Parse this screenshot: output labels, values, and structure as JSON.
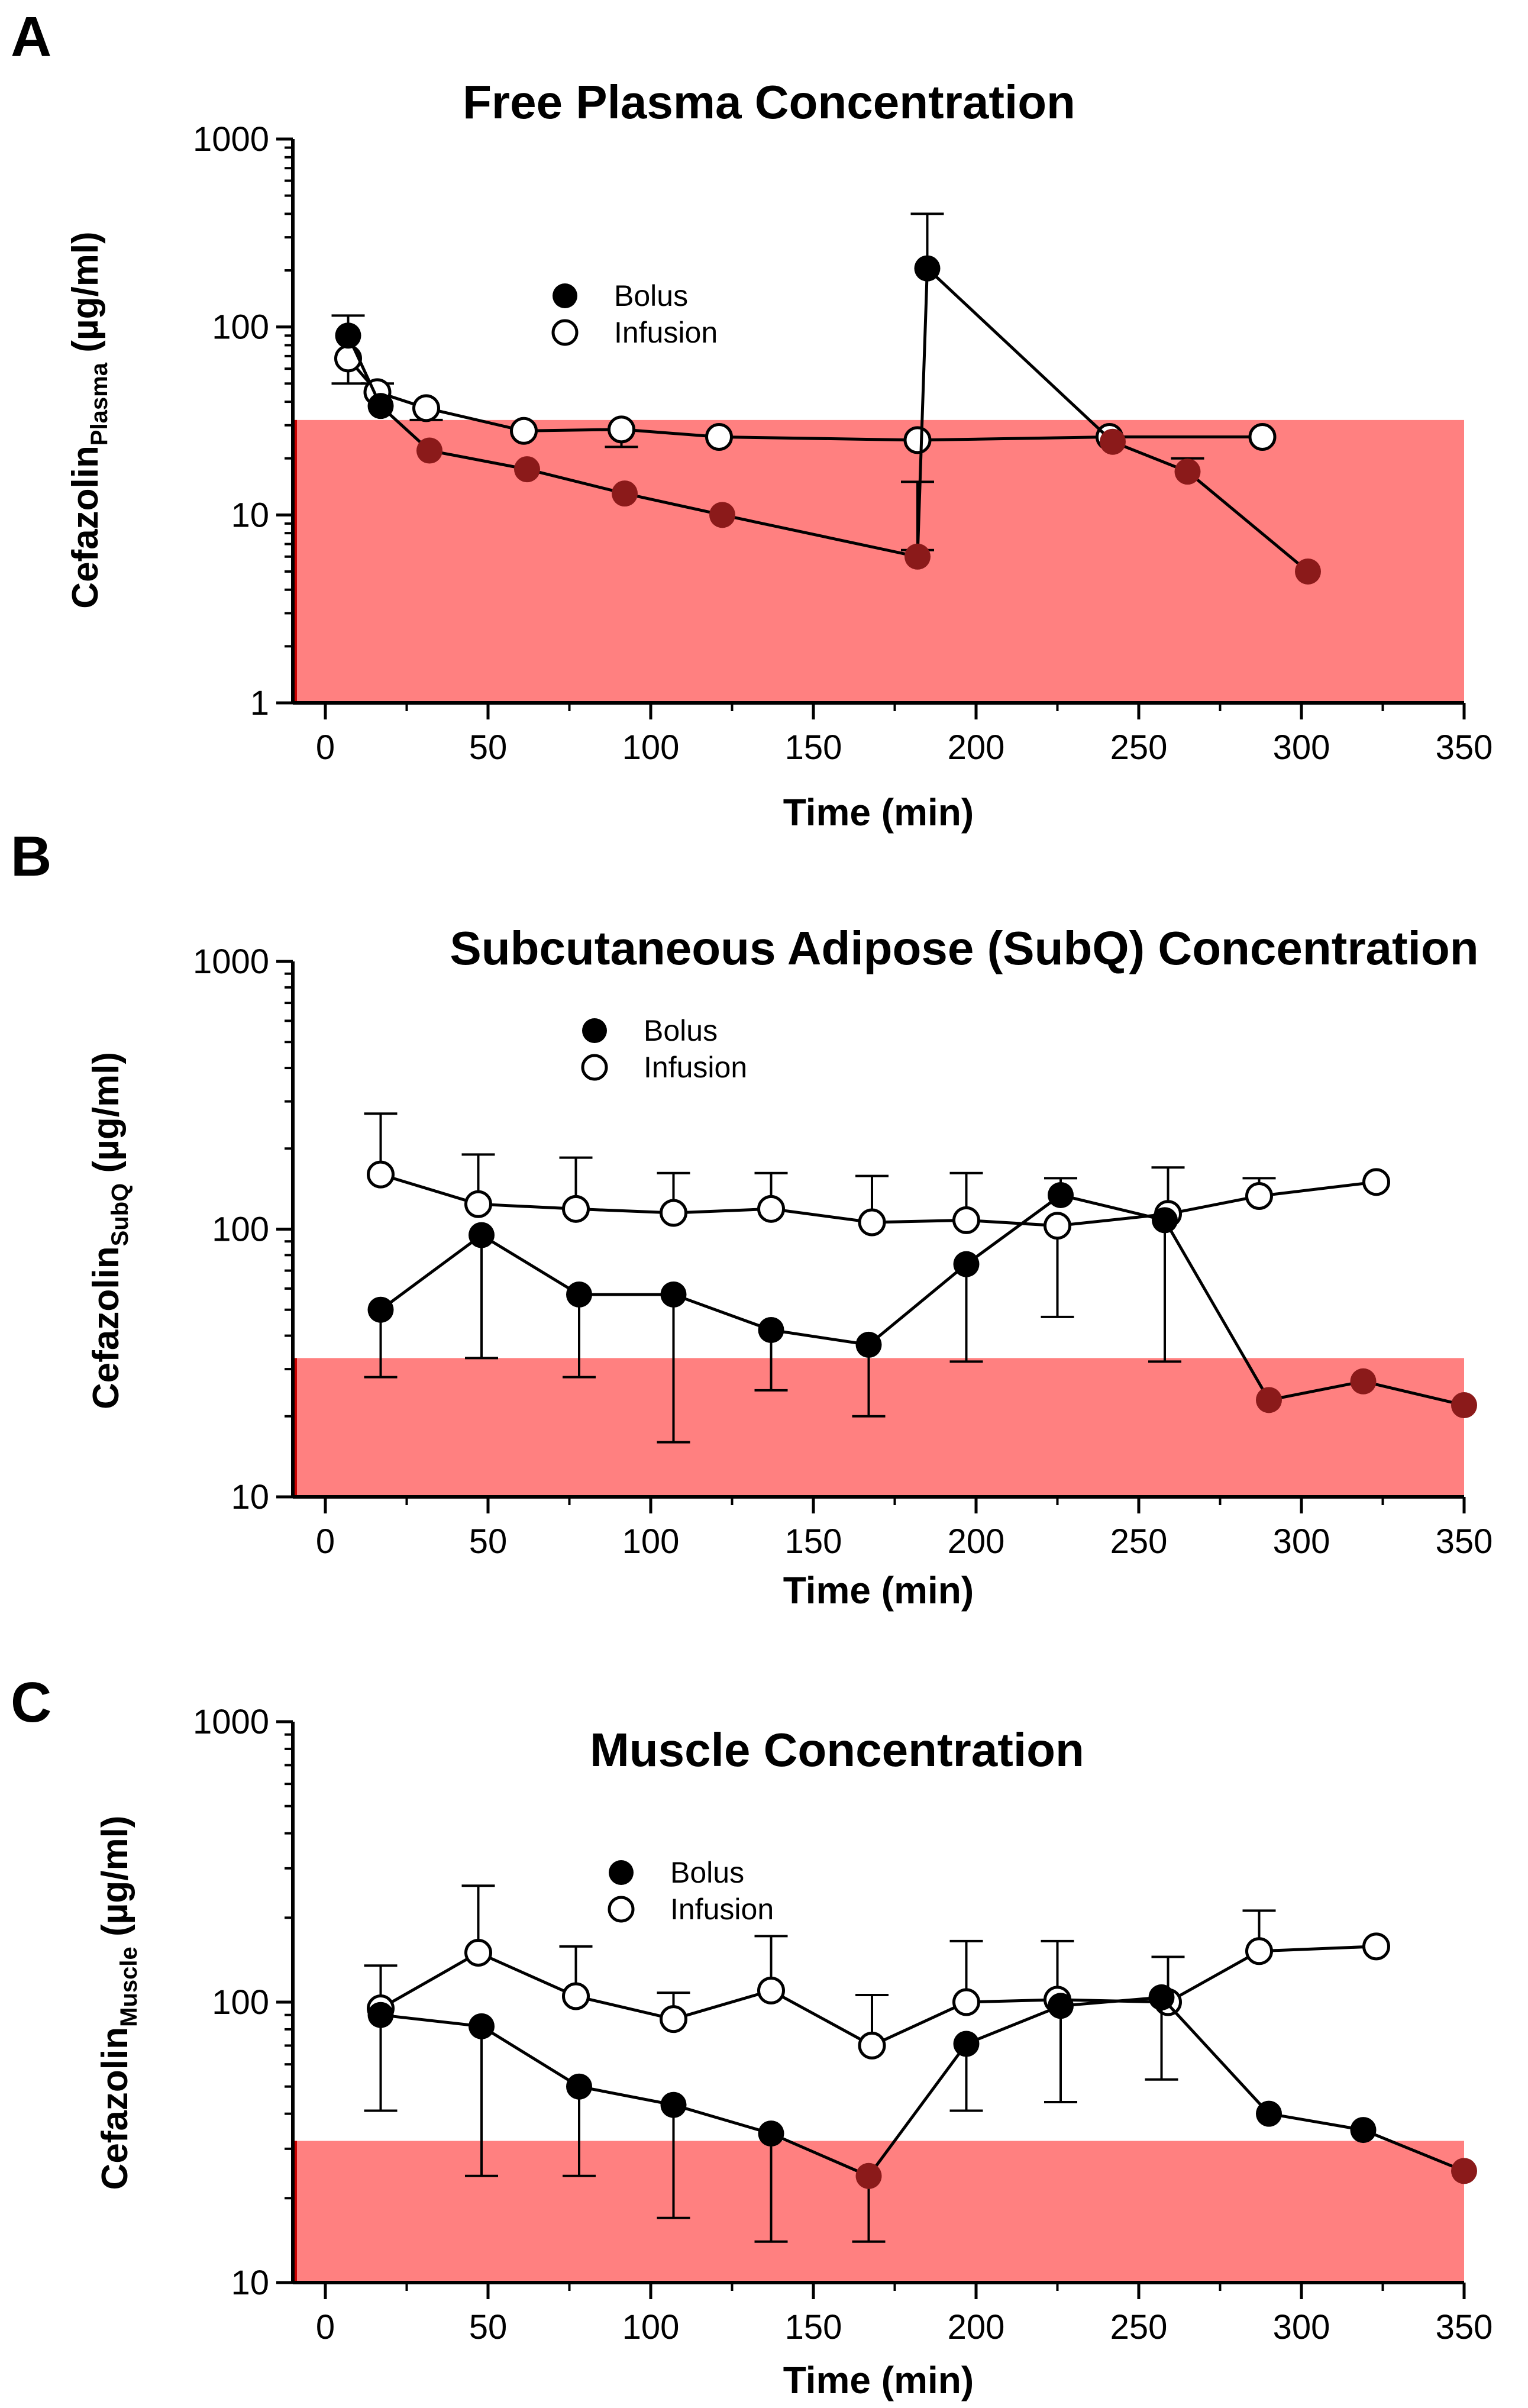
{
  "colors": {
    "threshold_band": "#ff8080",
    "threshold_border": "#cc0000",
    "bolus_marker": "#000000",
    "bolus_marker_in_band": "#8b1a1a",
    "axis": "#000000"
  },
  "chart_data": [
    {
      "panel": "A",
      "type": "line",
      "title": "Free Plasma Concentration",
      "xlabel": "Time (min)",
      "ylabel_main": "Cefazolin",
      "ylabel_sub": "Plasma",
      "ylabel_unit": " (µg/ml)",
      "yscale": "log",
      "xlim": [
        -10,
        350
      ],
      "ylim": [
        1,
        1000
      ],
      "x_ticks": [
        0,
        50,
        100,
        150,
        200,
        250,
        300,
        350
      ],
      "y_ticks": [
        1,
        10,
        100,
        1000
      ],
      "threshold_band": {
        "y_from": 1,
        "y_to": 32
      },
      "legend": {
        "position": "upper-center",
        "bolus": "Bolus",
        "infusion": "Infusion"
      },
      "series": [
        {
          "name": "Bolus",
          "marker": "filled",
          "x": [
            7,
            17,
            32,
            62,
            92,
            122,
            182,
            185,
            242,
            265,
            302
          ],
          "y": [
            90,
            38,
            22,
            17.5,
            13,
            10,
            6,
            205,
            24.5,
            17,
            5
          ],
          "err_up": [
            115,
            null,
            null,
            null,
            null,
            null,
            6.5,
            400,
            null,
            20,
            null
          ],
          "err_down": [
            null,
            null,
            null,
            null,
            null,
            null,
            15,
            null,
            null,
            null,
            null
          ]
        },
        {
          "name": "Infusion",
          "marker": "open",
          "x": [
            7,
            16,
            31,
            61,
            91,
            121,
            182,
            241,
            288
          ],
          "y": [
            68,
            45,
            37,
            28,
            28.5,
            26,
            25,
            26,
            26
          ],
          "err_up": [
            null,
            50,
            null,
            null,
            null,
            null,
            null,
            null,
            null
          ],
          "err_down": [
            50,
            null,
            32,
            null,
            23,
            null,
            null,
            null,
            null
          ]
        }
      ]
    },
    {
      "panel": "B",
      "type": "line",
      "title": "Subcutaneous Adipose (SubQ) Concentration",
      "xlabel": "Time (min)",
      "ylabel_main": "Cefazolin",
      "ylabel_sub": "SubQ",
      "ylabel_unit": " (µg/ml)",
      "yscale": "log",
      "xlim": [
        -10,
        350
      ],
      "ylim": [
        10,
        1000
      ],
      "x_ticks": [
        0,
        50,
        100,
        150,
        200,
        250,
        300,
        350
      ],
      "y_ticks": [
        10,
        100,
        1000
      ],
      "threshold_band": {
        "y_from": 10,
        "y_to": 33
      },
      "legend": {
        "position": "upper-center",
        "bolus": "Bolus",
        "infusion": "Infusion"
      },
      "series": [
        {
          "name": "Bolus",
          "marker": "filled",
          "x": [
            17,
            48,
            78,
            107,
            137,
            167,
            197,
            226,
            258,
            290,
            319,
            350
          ],
          "y": [
            50,
            95,
            57,
            57,
            42,
            37,
            74,
            134,
            108,
            23,
            27,
            22
          ],
          "err_up": [
            null,
            null,
            null,
            null,
            null,
            null,
            null,
            155,
            null,
            null,
            null,
            null
          ],
          "err_down": [
            28,
            33,
            28,
            16,
            25,
            20,
            32,
            null,
            32,
            null,
            null,
            null
          ]
        },
        {
          "name": "Infusion",
          "marker": "open",
          "x": [
            17,
            47,
            77,
            107,
            137,
            168,
            197,
            225,
            259,
            287,
            323
          ],
          "y": [
            160,
            124,
            119,
            115,
            119,
            106,
            108,
            103,
            114,
            133,
            150
          ],
          "err_up": [
            270,
            190,
            185,
            162,
            162,
            158,
            162,
            null,
            170,
            155,
            null
          ],
          "err_down": [
            null,
            null,
            null,
            null,
            null,
            null,
            null,
            47,
            null,
            null,
            null
          ]
        }
      ]
    },
    {
      "panel": "C",
      "type": "line",
      "title": "Muscle Concentration",
      "xlabel": "Time (min)",
      "ylabel_main": "Cefazolin",
      "ylabel_sub": "Muscle",
      "ylabel_unit": " (µg/ml)",
      "yscale": "log",
      "xlim": [
        -10,
        350
      ],
      "ylim": [
        10,
        1000
      ],
      "x_ticks": [
        0,
        50,
        100,
        150,
        200,
        250,
        300,
        350
      ],
      "y_ticks": [
        10,
        100,
        1000
      ],
      "threshold_band": {
        "y_from": 10,
        "y_to": 32
      },
      "legend": {
        "position": "upper-center",
        "bolus": "Bolus",
        "infusion": "Infusion"
      },
      "series": [
        {
          "name": "Bolus",
          "marker": "filled",
          "x": [
            17,
            48,
            78,
            107,
            137,
            167,
            197,
            226,
            257,
            290,
            319,
            350
          ],
          "y": [
            90,
            82,
            50,
            43,
            34,
            24,
            71,
            97,
            104,
            40,
            35,
            25
          ],
          "err_up": [
            null,
            null,
            null,
            null,
            null,
            null,
            null,
            null,
            null,
            null,
            null,
            null
          ],
          "err_down": [
            41,
            24,
            24,
            17,
            14,
            14,
            41,
            44,
            53,
            null,
            null,
            null
          ]
        },
        {
          "name": "Infusion",
          "marker": "open",
          "x": [
            17,
            47,
            77,
            107,
            137,
            168,
            197,
            225,
            259,
            287,
            323
          ],
          "y": [
            95,
            150,
            105,
            87,
            110,
            70,
            100,
            102,
            100,
            152,
            158
          ],
          "err_up": [
            135,
            260,
            158,
            108,
            172,
            106,
            165,
            165,
            145,
            212,
            null
          ],
          "err_down": [
            null,
            null,
            null,
            null,
            null,
            null,
            null,
            null,
            null,
            null,
            null
          ]
        }
      ]
    }
  ]
}
